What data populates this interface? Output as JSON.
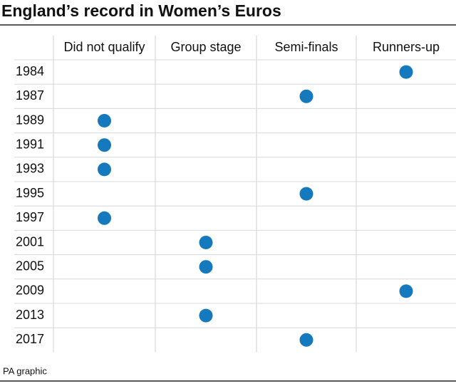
{
  "chart_data": {
    "type": "dot-matrix",
    "title": "England’s record in Women’s Euros",
    "columns": [
      "Did not qualify",
      "Group stage",
      "Semi-finals",
      "Runners-up"
    ],
    "categories": [
      "1984",
      "1987",
      "1989",
      "1991",
      "1993",
      "1995",
      "1997",
      "2001",
      "2005",
      "2009",
      "2013",
      "2017"
    ],
    "results": [
      "Runners-up",
      "Semi-finals",
      "Did not qualify",
      "Did not qualify",
      "Did not qualify",
      "Semi-finals",
      "Did not qualify",
      "Group stage",
      "Group stage",
      "Runners-up",
      "Group stage",
      "Semi-finals"
    ],
    "color": "#1479bd",
    "source": "PA graphic"
  }
}
